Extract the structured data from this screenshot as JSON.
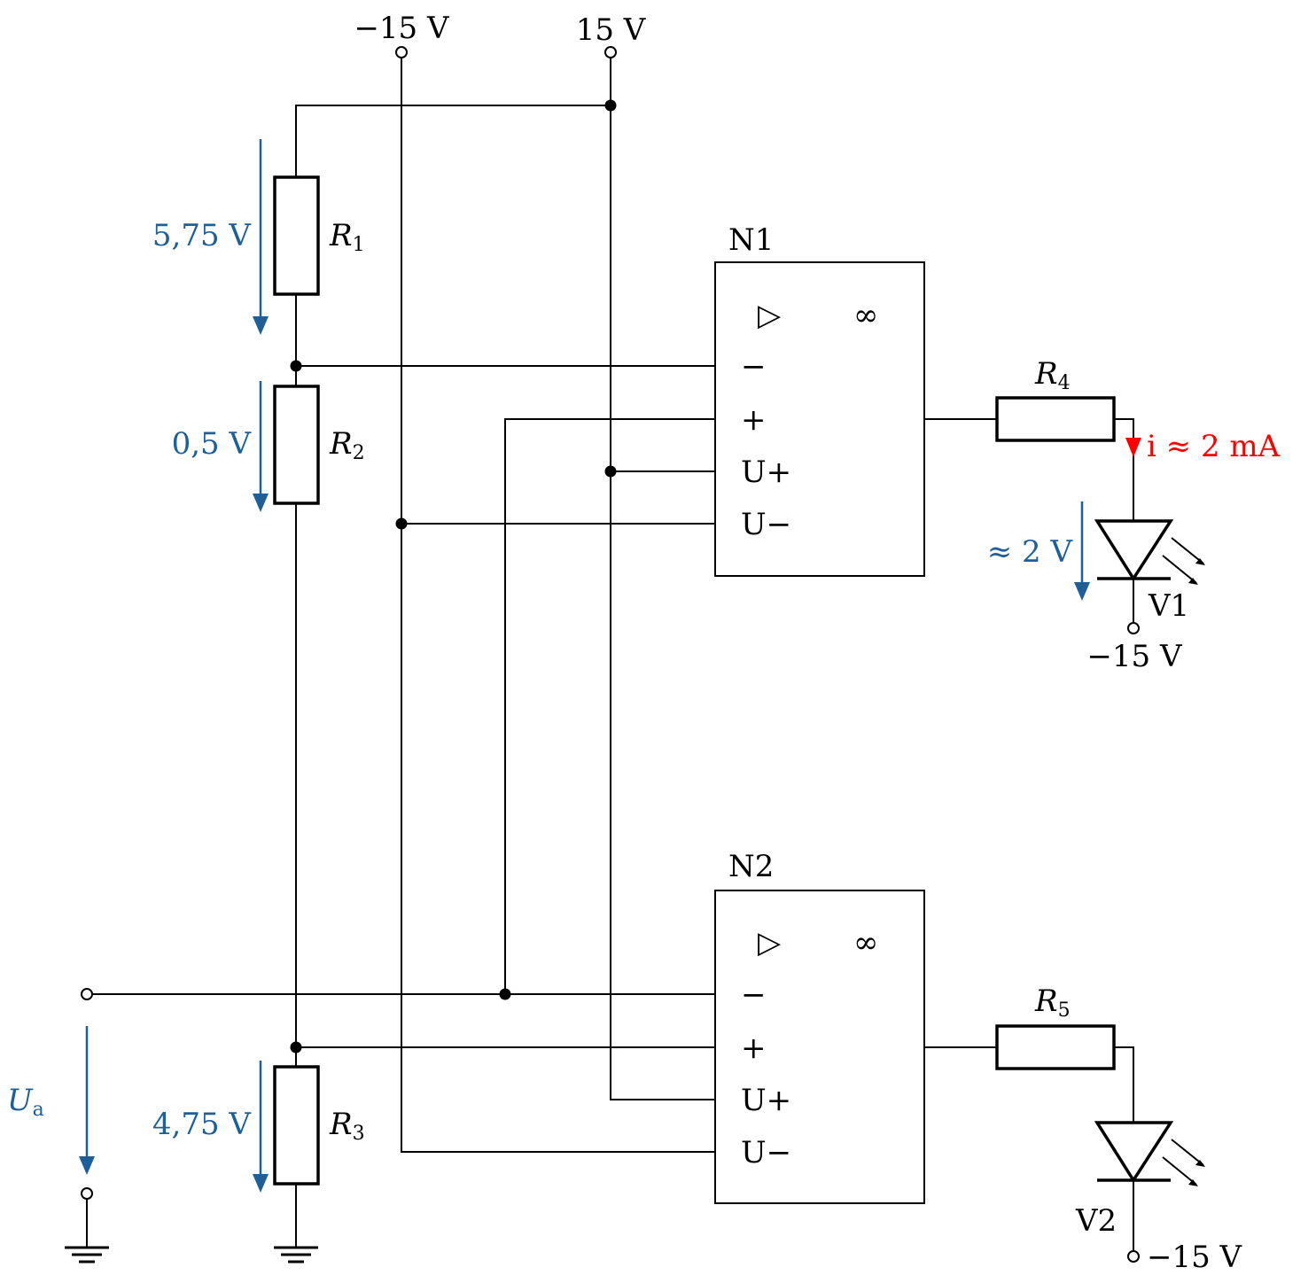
{
  "supply": {
    "neg": "−15 V",
    "pos": "15 V"
  },
  "resistors": {
    "r1": "R",
    "r1_sub": "1",
    "r2": "R",
    "r2_sub": "2",
    "r3": "R",
    "r3_sub": "3",
    "r4": "R",
    "r4_sub": "4",
    "r5": "R",
    "r5_sub": "5"
  },
  "voltages": {
    "r1": "5,75 V",
    "r2": "0,5 V",
    "r3": "4,75 V",
    "led": "≈ 2 V",
    "ua": "U",
    "ua_sub": "a"
  },
  "current": "i ≈ 2 mA",
  "opamps": {
    "n1": {
      "name": "N1",
      "amp_symbol": "▷",
      "gain_symbol": "∞",
      "pins": [
        "−",
        "+",
        "U+",
        "U−"
      ]
    },
    "n2": {
      "name": "N2",
      "amp_symbol": "▷",
      "gain_symbol": "∞",
      "pins": [
        "−",
        "+",
        "U+",
        "U−"
      ]
    }
  },
  "leds": {
    "v1": "V1",
    "v2": "V2",
    "v1_supply": "−15 V",
    "v2_supply": "−15 V"
  },
  "colors": {
    "voltage_arrow": "#1f5f99",
    "current_arrow": "#ff0000"
  }
}
